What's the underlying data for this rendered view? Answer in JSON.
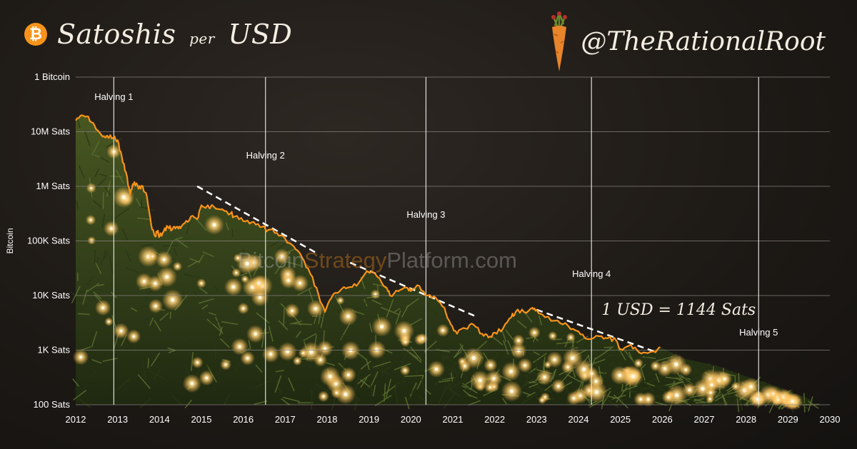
{
  "header": {
    "title_main": "Satoshis",
    "title_per": "per",
    "title_unit": "USD",
    "brand": "@TheRationalRoot",
    "watermark_part1": "Bitcoin",
    "watermark_part2": "Strategy",
    "watermark_part3": "Platform.com"
  },
  "colors": {
    "series": "#f7931a",
    "trendline": "#ffffff",
    "gridline": "#8a8580",
    "text": "#ffffff",
    "tree": "#3d4a1c",
    "light": "#ffd98a"
  },
  "icons": {
    "logo": "bitcoin-icon",
    "brand": "carrot-icon"
  },
  "chart_data": {
    "type": "line",
    "ylabel": "Bitcoin",
    "xlabel": "",
    "scale_y": "log",
    "xlim": [
      2012,
      2030
    ],
    "ylim": [
      100,
      100000000
    ],
    "grid": true,
    "x_ticks": [
      "2012",
      "2013",
      "2014",
      "2015",
      "2016",
      "2017",
      "2018",
      "2019",
      "2020",
      "2021",
      "2022",
      "2023",
      "2024",
      "2025",
      "2026",
      "2027",
      "2028",
      "2029",
      "2030"
    ],
    "y_ticks": [
      {
        "value": 100,
        "label": "100 Sats"
      },
      {
        "value": 1000,
        "label": "1K Sats"
      },
      {
        "value": 10000,
        "label": "10K Sats"
      },
      {
        "value": 100000,
        "label": "100K Sats"
      },
      {
        "value": 1000000,
        "label": "1M Sats"
      },
      {
        "value": 10000000,
        "label": "10M Sats"
      },
      {
        "value": 100000000,
        "label": "1 Bitcoin"
      }
    ],
    "halvings": [
      {
        "name": "Halving 1",
        "x": 2012.91
      },
      {
        "name": "Halving 2",
        "x": 2016.53
      },
      {
        "name": "Halving 3",
        "x": 2020.36
      },
      {
        "name": "Halving 4",
        "x": 2024.31
      },
      {
        "name": "Halving 5",
        "x": 2028.3
      }
    ],
    "series": [
      {
        "x": [
          2012.0,
          2012.15,
          2012.3,
          2012.45,
          2012.6,
          2012.75,
          2012.9,
          2013.0,
          2013.1,
          2013.2,
          2013.3,
          2013.35,
          2013.4,
          2013.5,
          2013.6,
          2013.7,
          2013.8,
          2013.9,
          2013.95,
          2014.0,
          2014.1,
          2014.2,
          2014.3,
          2014.4,
          2014.5,
          2014.6,
          2014.75,
          2014.9,
          2015.0,
          2015.1,
          2015.3,
          2015.5,
          2015.7,
          2015.8,
          2016.0,
          2016.2,
          2016.4,
          2016.6,
          2016.8,
          2017.0,
          2017.2,
          2017.4,
          2017.6,
          2017.8,
          2017.95,
          2018.1,
          2018.3,
          2018.5,
          2018.7,
          2018.95,
          2019.2,
          2019.4,
          2019.5,
          2019.7,
          2019.9,
          2020.0,
          2020.2,
          2020.4,
          2020.6,
          2020.8,
          2020.95,
          2021.1,
          2021.3,
          2021.5,
          2021.7,
          2021.85,
          2022.0,
          2022.2,
          2022.4,
          2022.5,
          2022.7,
          2022.9,
          2023.0,
          2023.2,
          2023.5,
          2023.75,
          2024.0,
          2024.2,
          2024.5,
          2024.7,
          2024.9,
          2025.0,
          2025.2,
          2025.4,
          2025.6,
          2025.8,
          2025.95
        ],
        "values": [
          16000000,
          20000000,
          19000000,
          13000000,
          9000000,
          8500000,
          7800000,
          7000000,
          3500000,
          1800000,
          700000,
          1000000,
          1200000,
          900000,
          1000000,
          650000,
          200000,
          120000,
          150000,
          120000,
          150000,
          180000,
          160000,
          180000,
          170000,
          210000,
          280000,
          250000,
          450000,
          400000,
          420000,
          380000,
          320000,
          280000,
          230000,
          220000,
          180000,
          160000,
          140000,
          110000,
          80000,
          50000,
          25000,
          10000,
          5000,
          9000,
          12000,
          14000,
          15000,
          28000,
          22000,
          14000,
          10000,
          12000,
          14000,
          12000,
          15000,
          10000,
          9000,
          6000,
          3000,
          2000,
          2500,
          2900,
          2000,
          1700,
          2100,
          2500,
          4000,
          5000,
          5000,
          6000,
          5500,
          4000,
          3500,
          2800,
          2200,
          1600,
          1800,
          1650,
          1500,
          1050,
          1200,
          1000,
          900,
          950,
          1144
        ]
      }
    ],
    "trendlines": [
      {
        "x": [
          2014.9,
          2017.75
        ],
        "values": [
          1000000,
          60000
        ]
      },
      {
        "x": [
          2018.55,
          2021.6
        ],
        "values": [
          40000,
          4000
        ]
      },
      {
        "x": [
          2023.0,
          2025.8
        ],
        "values": [
          5500,
          950
        ]
      }
    ],
    "annotations": [
      {
        "text": "1 USD = 1144 Sats",
        "x": 2024.55,
        "y": 2600
      }
    ]
  }
}
